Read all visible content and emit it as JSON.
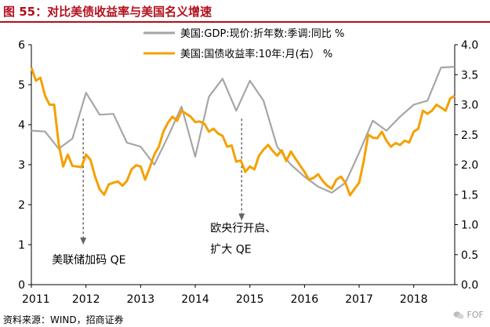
{
  "title": "图 55：对比美债收益率与美国名义增速",
  "source": "资料来源：WIND，招商证券",
  "watermark": "FOF",
  "colors": {
    "gdp": "#a6a6a6",
    "yield": "#f5a000",
    "title": "#b20f1c"
  },
  "chart_data": {
    "type": "line",
    "x_ticks": [
      "2011",
      "2012",
      "2013",
      "2014",
      "2015",
      "2016",
      "2017",
      "2018"
    ],
    "x_range": [
      2011.0,
      2018.75
    ],
    "y_left": {
      "range": [
        0,
        6
      ],
      "ticks": [
        "0",
        "1",
        "2",
        "3",
        "4",
        "5",
        "6"
      ]
    },
    "y_right": {
      "range": [
        0,
        4
      ],
      "ticks": [
        "0.0",
        "0.5",
        "1.0",
        "1.5",
        "2.0",
        "2.5",
        "3.0",
        "3.5",
        "4.0"
      ]
    },
    "legend": [
      "美国:GDP:现价:折年数:季调:同比 %",
      "美国:国债收益率:10年:月(右） %"
    ],
    "annotations": [
      {
        "text": "美联储加码 QE",
        "x": 2011.95,
        "arrow_from": 4.15,
        "arrow_to": 1.0
      },
      {
        "text_lines": [
          "欧央行开启、",
          "扩大 QE"
        ],
        "x": 2014.85,
        "arrow_from": 4.15,
        "arrow_to": 1.6
      }
    ],
    "series": [
      {
        "name": "美国:GDP:现价:折年数:季调:同比",
        "axis": "left",
        "x": [
          2011.0,
          2011.25,
          2011.5,
          2011.75,
          2012.0,
          2012.25,
          2012.5,
          2012.75,
          2013.0,
          2013.25,
          2013.5,
          2013.75,
          2014.0,
          2014.25,
          2014.5,
          2014.75,
          2015.0,
          2015.25,
          2015.5,
          2015.75,
          2016.0,
          2016.25,
          2016.5,
          2016.75,
          2017.0,
          2017.25,
          2017.5,
          2017.75,
          2018.0,
          2018.25,
          2018.5,
          2018.75
        ],
        "values": [
          3.85,
          3.83,
          3.4,
          3.65,
          4.8,
          4.25,
          4.27,
          3.55,
          3.45,
          3.0,
          3.7,
          4.45,
          3.2,
          4.7,
          5.15,
          4.35,
          5.1,
          4.6,
          3.45,
          3.0,
          2.7,
          2.45,
          2.3,
          2.55,
          3.3,
          4.1,
          3.85,
          4.2,
          4.5,
          4.6,
          5.43,
          5.45
        ]
      },
      {
        "name": "美国:国债收益率:10年:月(右)",
        "axis": "right",
        "x": [
          2011.0,
          2011.083,
          2011.167,
          2011.25,
          2011.333,
          2011.417,
          2011.5,
          2011.583,
          2011.667,
          2011.75,
          2011.833,
          2011.917,
          2012.0,
          2012.083,
          2012.167,
          2012.25,
          2012.333,
          2012.417,
          2012.5,
          2012.583,
          2012.667,
          2012.75,
          2012.833,
          2012.917,
          2013.0,
          2013.083,
          2013.167,
          2013.25,
          2013.333,
          2013.417,
          2013.5,
          2013.583,
          2013.667,
          2013.75,
          2013.833,
          2013.917,
          2014.0,
          2014.083,
          2014.167,
          2014.25,
          2014.333,
          2014.417,
          2014.5,
          2014.583,
          2014.667,
          2014.75,
          2014.833,
          2014.917,
          2015.0,
          2015.083,
          2015.167,
          2015.25,
          2015.333,
          2015.417,
          2015.5,
          2015.583,
          2015.667,
          2015.75,
          2015.833,
          2015.917,
          2016.0,
          2016.083,
          2016.167,
          2016.25,
          2016.333,
          2016.417,
          2016.5,
          2016.583,
          2016.667,
          2016.75,
          2016.833,
          2016.917,
          2017.0,
          2017.083,
          2017.167,
          2017.25,
          2017.333,
          2017.417,
          2017.5,
          2017.583,
          2017.667,
          2017.75,
          2017.833,
          2017.917,
          2018.0,
          2018.083,
          2018.167,
          2018.25,
          2018.333,
          2018.417,
          2018.5,
          2018.583,
          2018.667,
          2018.75
        ],
        "values": [
          3.62,
          3.4,
          3.45,
          3.15,
          3.0,
          3.0,
          2.35,
          1.97,
          2.17,
          1.98,
          1.97,
          1.96,
          2.17,
          2.08,
          1.8,
          1.59,
          1.5,
          1.67,
          1.7,
          1.72,
          1.65,
          1.73,
          1.92,
          1.99,
          1.97,
          1.75,
          1.95,
          2.17,
          2.3,
          2.55,
          2.7,
          2.8,
          2.73,
          2.9,
          2.85,
          2.8,
          2.71,
          2.72,
          2.68,
          2.55,
          2.6,
          2.52,
          2.48,
          2.3,
          2.32,
          2.05,
          2.07,
          1.88,
          1.97,
          1.92,
          2.15,
          2.25,
          2.33,
          2.23,
          2.15,
          2.24,
          2.06,
          2.22,
          2.1,
          1.99,
          1.88,
          1.75,
          1.78,
          1.84,
          1.73,
          1.65,
          1.6,
          1.75,
          1.8,
          1.7,
          1.49,
          1.6,
          1.7,
          2.05,
          2.5,
          2.45,
          2.44,
          2.55,
          2.4,
          2.3,
          2.36,
          2.33,
          2.4,
          2.37,
          2.55,
          2.6,
          2.9,
          2.85,
          2.9,
          3.0,
          2.95,
          2.9,
          3.1,
          3.15
        ]
      }
    ]
  }
}
